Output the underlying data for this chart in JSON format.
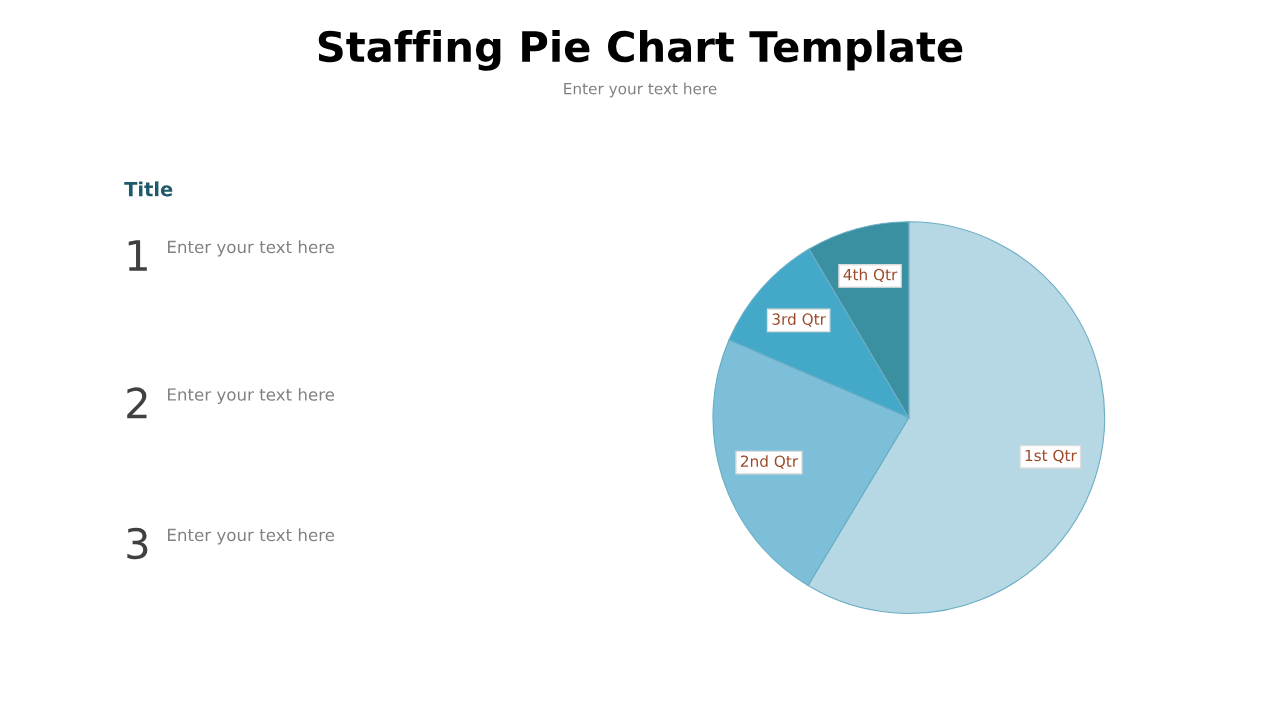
{
  "chart_data": {
    "type": "pie",
    "title": "Staffing Pie Chart Template",
    "subtitle": "Enter your text here",
    "categories": [
      "1st Qtr",
      "2nd Qtr",
      "3rd Qtr",
      "4th Qtr"
    ],
    "values": [
      58.6,
      22.9,
      10.0,
      8.5
    ],
    "colors": [
      "#b6d8e4",
      "#7dbfd8",
      "#44a9c8",
      "#3a8fa0"
    ],
    "legend": false,
    "annotations": [
      "Title",
      "1",
      "Enter your text here",
      "2",
      "Enter your text here",
      "3",
      "Enter your text here"
    ]
  }
}
